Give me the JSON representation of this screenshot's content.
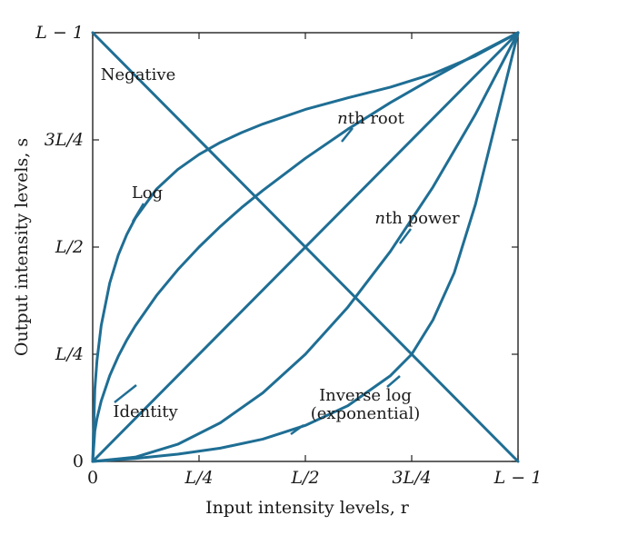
{
  "chart_data": {
    "type": "line",
    "xlabel": "Input intensity levels, r",
    "ylabel": "Output intensity levels, s",
    "xlim": [
      0,
      1
    ],
    "ylim": [
      0,
      1
    ],
    "xticks": [
      {
        "value": 0,
        "label": "0"
      },
      {
        "value": 0.25,
        "label": "L/4"
      },
      {
        "value": 0.5,
        "label": "L/2"
      },
      {
        "value": 0.75,
        "label": "3L/4"
      },
      {
        "value": 1,
        "label": "L − 1"
      }
    ],
    "yticks": [
      {
        "value": 0,
        "label": "0"
      },
      {
        "value": 0.25,
        "label": "L/4"
      },
      {
        "value": 0.5,
        "label": "L/2"
      },
      {
        "value": 0.75,
        "label": "3L/4"
      },
      {
        "value": 1,
        "label": "L − 1"
      }
    ],
    "color": "#1f6e94",
    "series": [
      {
        "name": "Negative",
        "x": [
          0,
          1
        ],
        "y": [
          1,
          0
        ]
      },
      {
        "name": "Log",
        "x": [
          0,
          0.005,
          0.01,
          0.02,
          0.04,
          0.06,
          0.08,
          0.1,
          0.15,
          0.2,
          0.25,
          0.3,
          0.35,
          0.4,
          0.5,
          0.6,
          0.7,
          0.8,
          0.9,
          1
        ],
        "y": [
          0,
          0.168,
          0.235,
          0.317,
          0.416,
          0.481,
          0.529,
          0.567,
          0.635,
          0.681,
          0.716,
          0.744,
          0.767,
          0.787,
          0.821,
          0.848,
          0.873,
          0.904,
          0.946,
          1
        ]
      },
      {
        "name": "nth root",
        "x": [
          0,
          0.005,
          0.01,
          0.02,
          0.04,
          0.06,
          0.08,
          0.1,
          0.15,
          0.2,
          0.25,
          0.3,
          0.35,
          0.4,
          0.5,
          0.6,
          0.7,
          0.8,
          0.9,
          1
        ],
        "y": [
          0,
          0.071,
          0.1,
          0.141,
          0.2,
          0.245,
          0.283,
          0.316,
          0.387,
          0.447,
          0.5,
          0.548,
          0.592,
          0.632,
          0.707,
          0.775,
          0.837,
          0.894,
          0.949,
          1
        ]
      },
      {
        "name": "Identity",
        "x": [
          0,
          1
        ],
        "y": [
          0,
          1
        ]
      },
      {
        "name": "nth power",
        "x": [
          0,
          0.1,
          0.2,
          0.3,
          0.4,
          0.5,
          0.6,
          0.7,
          0.8,
          0.9,
          1
        ],
        "y": [
          0,
          0.01,
          0.04,
          0.09,
          0.16,
          0.25,
          0.36,
          0.49,
          0.64,
          0.81,
          1
        ]
      },
      {
        "name": "Inverse log (exponential)",
        "x": [
          0,
          0.1,
          0.2,
          0.3,
          0.4,
          0.5,
          0.6,
          0.7,
          0.75,
          0.8,
          0.85,
          0.9,
          0.95,
          1
        ],
        "y": [
          0,
          0.007,
          0.017,
          0.031,
          0.052,
          0.084,
          0.13,
          0.2,
          0.25,
          0.33,
          0.44,
          0.6,
          0.8,
          1
        ]
      }
    ],
    "annotations": [
      {
        "text": "Negative",
        "series": 0
      },
      {
        "text": "Log",
        "series": 1
      },
      {
        "text": "nth root",
        "series": 2
      },
      {
        "text": "Identity",
        "series": 3
      },
      {
        "text": "nth power",
        "series": 4
      },
      {
        "text": "Inverse log",
        "series": 5
      },
      {
        "text": "(exponential)",
        "series": 5
      }
    ],
    "grid": false,
    "legend": "none"
  }
}
